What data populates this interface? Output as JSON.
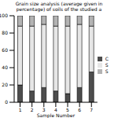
{
  "chart_data": {
    "type": "bar",
    "title": "Grain size analysis (average given in percentage) of soils of the studied a",
    "x_label": "Sample Number",
    "categories": [
      "1",
      "2",
      "3",
      "4",
      "5",
      "6",
      "7"
    ],
    "stacked": true,
    "series": [
      {
        "name": "C",
        "color": "#4d4d4d",
        "values": [
          20,
          13,
          17,
          13,
          10,
          17,
          35
        ]
      },
      {
        "name": "S",
        "color": "#e6e6e6",
        "values": [
          68,
          75,
          73,
          75,
          78,
          73,
          53
        ]
      },
      {
        "name": "S",
        "color": "#b3b3b3",
        "values": [
          12,
          12,
          10,
          12,
          12,
          10,
          12
        ]
      }
    ],
    "ylim": [
      0,
      100
    ],
    "yticks": [
      0,
      20,
      40,
      60,
      80,
      100
    ],
    "legend": "right",
    "grid": false
  }
}
